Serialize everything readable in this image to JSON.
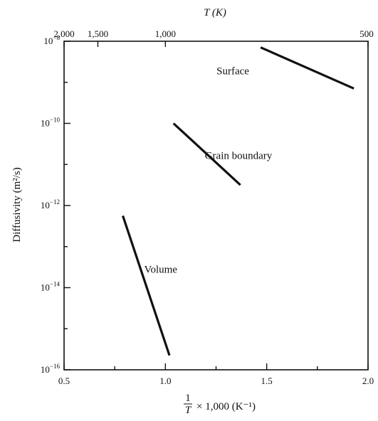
{
  "chart_data": {
    "type": "line",
    "xlabel_parts": {
      "frac_num": "1",
      "frac_den": "T",
      "rest": "× 1,000 (K⁻¹)"
    },
    "ylabel": "Diffusivity (m²/s)",
    "top_axis_label": "T (K)",
    "xlim": [
      0.5,
      2.0
    ],
    "ylim_log10": [
      -16,
      -8
    ],
    "y_scale": "log",
    "grid": false,
    "x_ticks": [
      0.5,
      1.0,
      1.5,
      2.0
    ],
    "x_tick_labels": [
      "0.5",
      "1.0",
      "1.5",
      "2.0"
    ],
    "x_minor_ticks": [
      0.75,
      1.25,
      1.75
    ],
    "y_ticks_log10": [
      -8,
      -10,
      -12,
      -14,
      -16
    ],
    "y_tick_labels": [
      {
        "base": "10",
        "exp": "−8"
      },
      {
        "base": "10",
        "exp": "−10"
      },
      {
        "base": "10",
        "exp": "−12"
      },
      {
        "base": "10",
        "exp": "−14"
      },
      {
        "base": "10",
        "exp": "−16"
      }
    ],
    "y_minor_ticks_log10": [
      -9,
      -11,
      -13,
      -15
    ],
    "top_ticks": [
      {
        "value": 0.5,
        "label": "2,000"
      },
      {
        "value": 0.6667,
        "label": "1,500"
      },
      {
        "value": 1.0,
        "label": "1,000"
      },
      {
        "value": 2.0,
        "label": "500"
      }
    ],
    "series": [
      {
        "name": "Surface",
        "x": [
          1.47,
          1.93
        ],
        "log10_y": [
          -8.15,
          -9.15
        ]
      },
      {
        "name": "Grain boundary",
        "x": [
          1.04,
          1.37
        ],
        "log10_y": [
          -10.0,
          -11.5
        ]
      },
      {
        "name": "Volume",
        "x": [
          0.79,
          1.02
        ],
        "log10_y": [
          -12.25,
          -15.65
        ]
      }
    ]
  }
}
